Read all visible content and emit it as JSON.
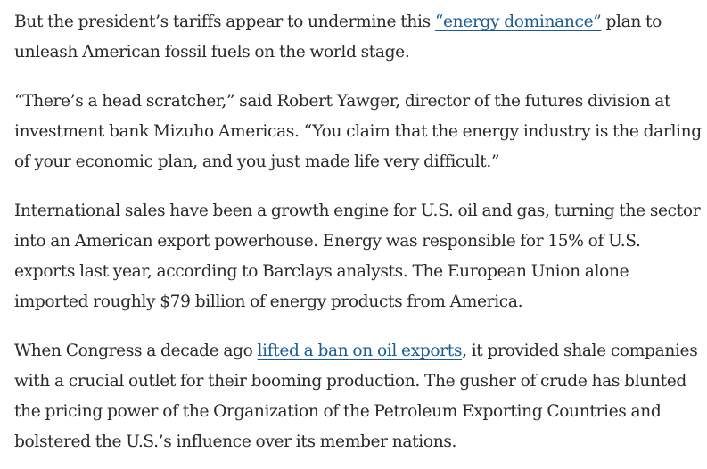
{
  "article": {
    "p1": {
      "before": "But the president’s tariffs appear to undermine this ",
      "link": "“energy dominance”",
      "after": " plan to unleash American fossil fuels on the world stage."
    },
    "p2": "“There’s a head scratcher,” said Robert Yawger, director of the futures division at investment bank Mizuho Americas. “You claim that the energy industry is the darling of your economic plan, and you just made life very difficult.”",
    "p3": "International sales have been a growth engine for U.S. oil and gas, turning the sector into an American export powerhouse. Energy was responsible for 15% of U.S. exports last year, according to Barclays analysts. The European Union alone imported roughly $79 billion of energy products from America.",
    "p4": {
      "before": "When Congress a decade ago ",
      "link": "lifted a ban on oil exports",
      "after": ", it provided shale companies with a crucial outlet for their booming production. The gusher of crude has blunted the pricing power of the Organization of the Petroleum Exporting Countries and bolstered the U.S.’s influence over its member nations."
    }
  },
  "colors": {
    "text": "#2a2a2a",
    "link": "#1a5b94",
    "background": "#ffffff"
  }
}
